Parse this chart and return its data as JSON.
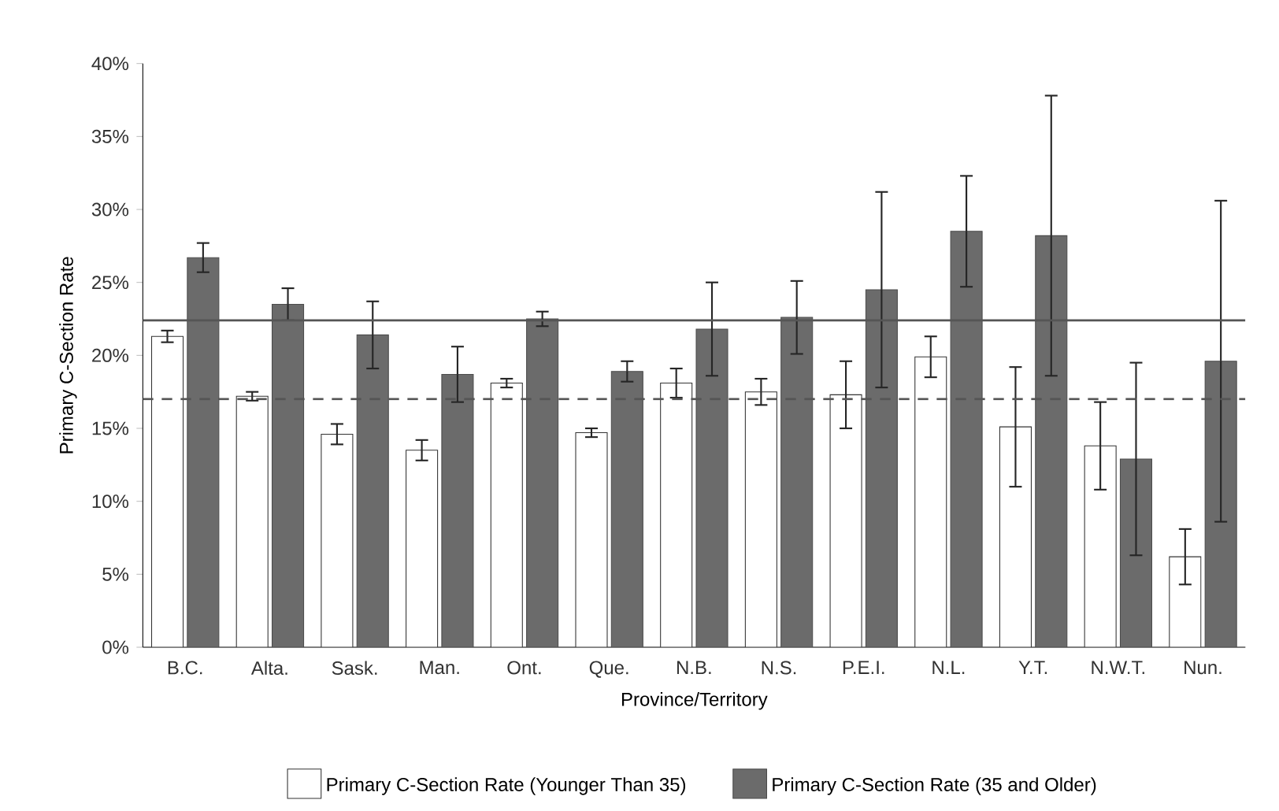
{
  "chart_data": {
    "type": "bar",
    "xlabel": "Province/Territory",
    "ylabel": "Primary C-Section Rate",
    "categories": [
      "B.C.",
      "Alta.",
      "Sask.",
      "Man.",
      "Ont.",
      "Que.",
      "N.B.",
      "N.S.",
      "P.E.I.",
      "N.L.",
      "Y.T.",
      "N.W.T.",
      "Nun."
    ],
    "series": [
      {
        "name": "Primary C-Section Rate (Younger Than 35)",
        "color": "#ffffff",
        "values": [
          21.3,
          17.2,
          14.6,
          13.5,
          18.1,
          14.7,
          18.1,
          17.5,
          17.3,
          19.9,
          15.1,
          13.8,
          6.2
        ],
        "errors": [
          0.4,
          0.3,
          0.7,
          0.7,
          0.3,
          0.3,
          1.0,
          0.9,
          2.3,
          1.4,
          4.1,
          3.0,
          1.9
        ]
      },
      {
        "name": "Primary C-Section Rate (35 and Older)",
        "color": "#6b6b6b",
        "values": [
          26.7,
          23.5,
          21.4,
          18.7,
          22.5,
          18.9,
          21.8,
          22.6,
          24.5,
          28.5,
          28.2,
          12.9,
          19.6
        ],
        "errors": [
          1.0,
          1.1,
          2.3,
          1.9,
          0.5,
          0.7,
          3.2,
          2.5,
          6.7,
          3.8,
          9.6,
          6.6,
          11.0
        ]
      }
    ],
    "ylim": [
      0,
      40
    ],
    "yticks": [
      {
        "value": 0,
        "label": "0%"
      },
      {
        "value": 5,
        "label": "5%"
      },
      {
        "value": 10,
        "label": "10%"
      },
      {
        "value": 15,
        "label": "15%"
      },
      {
        "value": 20,
        "label": "20%"
      },
      {
        "value": 25,
        "label": "25%"
      },
      {
        "value": 30,
        "label": "30%"
      },
      {
        "value": 35,
        "label": "35%"
      },
      {
        "value": 40,
        "label": "40%"
      }
    ],
    "ref_lines": [
      {
        "axis": "y",
        "value": 22.4,
        "color": "#555555",
        "line_style": "solid"
      },
      {
        "axis": "y",
        "value": 17.0,
        "color": "#555555",
        "line_style": "dashed"
      }
    ],
    "legend": "bottom",
    "grid": false
  }
}
